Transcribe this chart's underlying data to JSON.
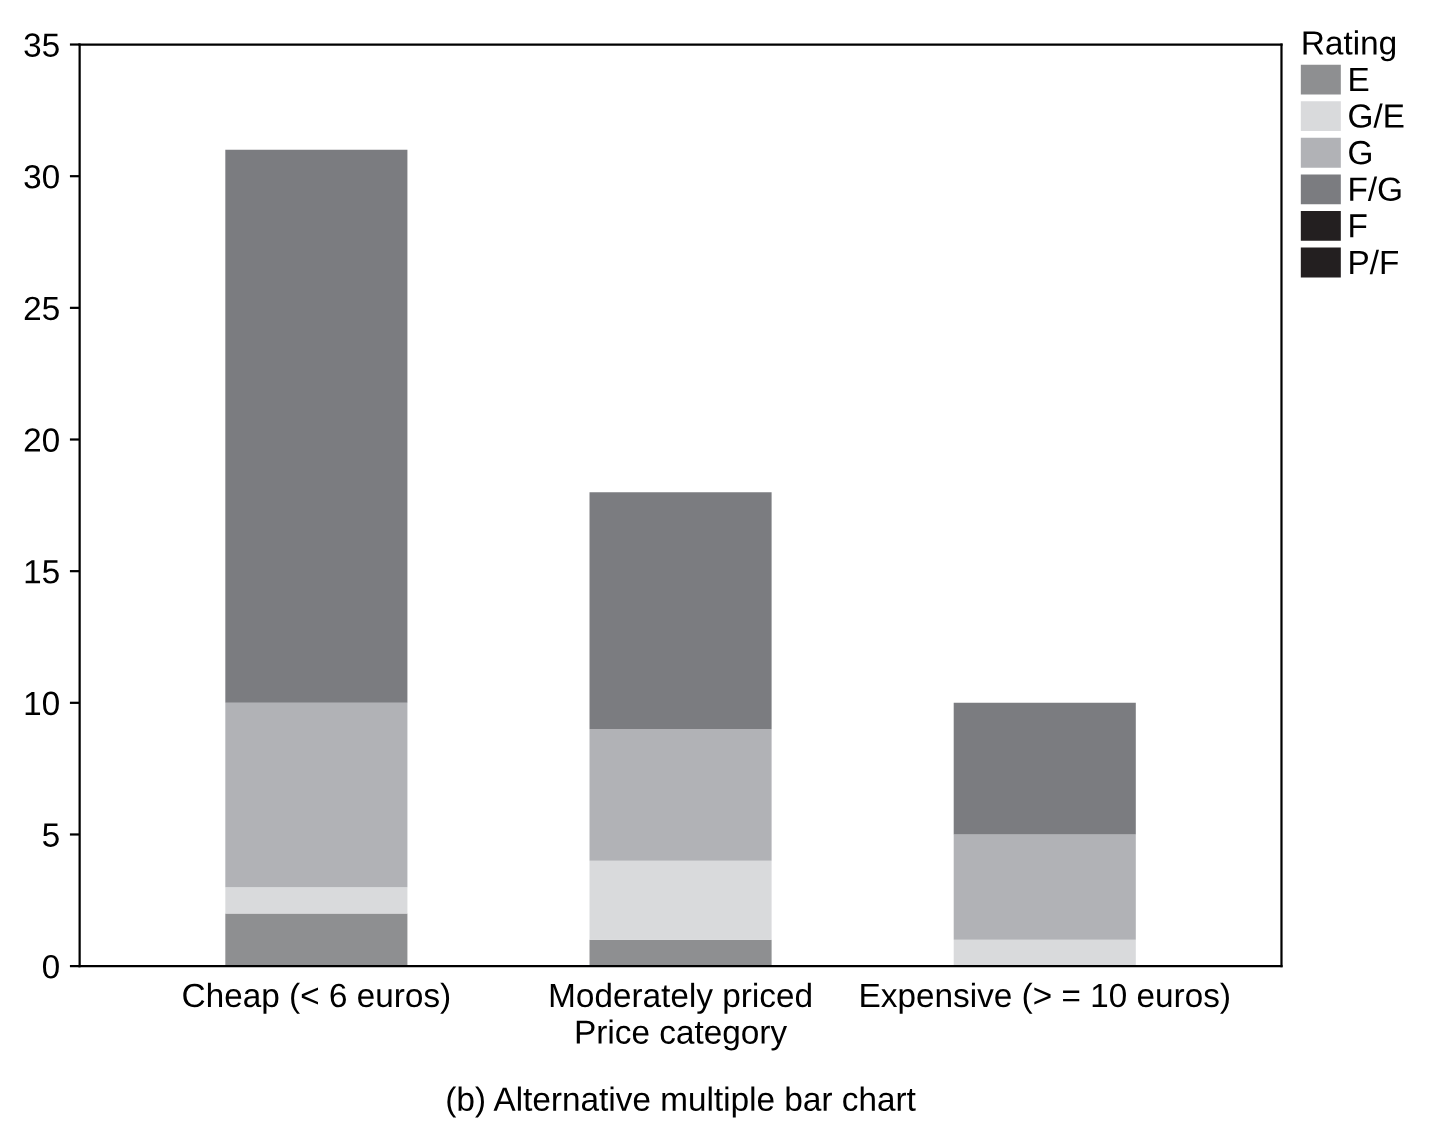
{
  "chart_data": {
    "type": "bar",
    "stacked": true,
    "xlabel": "Price category",
    "legend_title": "Rating",
    "legend": "top right",
    "categories": [
      "Cheap (< 6 euros)",
      "Moderately priced",
      "Expensive (> = 10 euros)"
    ],
    "series": [
      {
        "name": "E",
        "color": "#8e8f91",
        "values": [
          2,
          1,
          0
        ]
      },
      {
        "name": "G/E",
        "color": "#d9dadc",
        "values": [
          1,
          3,
          1
        ]
      },
      {
        "name": "G",
        "color": "#b1b2b6",
        "values": [
          7,
          5,
          4
        ]
      },
      {
        "name": "F/G",
        "color": "#7b7c80",
        "values": [
          21,
          9,
          5
        ]
      },
      {
        "name": "F",
        "color": "#231f20",
        "values": [
          0,
          0,
          0
        ]
      },
      {
        "name": "P/F",
        "color": "#231f20",
        "values": [
          0,
          0,
          0
        ]
      }
    ],
    "ylim": [
      0,
      35
    ],
    "yticks": [
      0,
      5,
      10,
      15,
      20,
      25,
      30,
      35
    ],
    "grid": false,
    "annotations": [
      "(b) Alternative multiple bar chart"
    ]
  }
}
